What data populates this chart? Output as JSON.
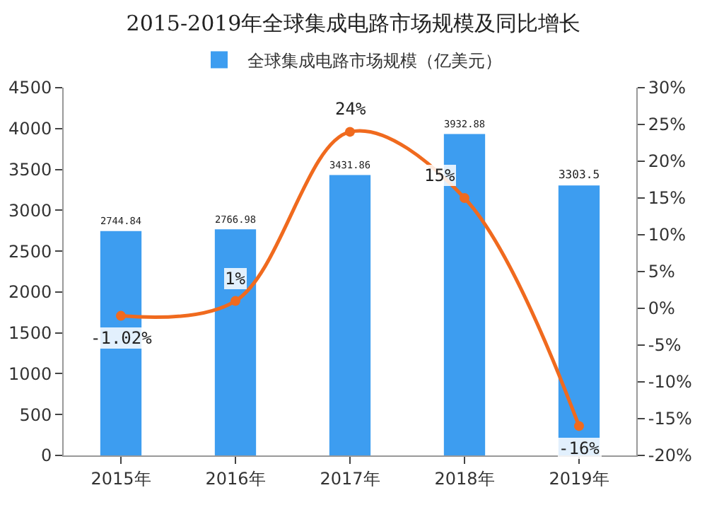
{
  "chart_data": {
    "type": "bar",
    "title": "2015-2019年全球集成电路市场规模及同比增长",
    "categories": [
      "2015年",
      "2016年",
      "2017年",
      "2018年",
      "2019年"
    ],
    "series": [
      {
        "name": "全球集成电路市场规模（亿美元）",
        "color": "#3d9df0",
        "values": [
          2744.84,
          2766.98,
          3431.86,
          3932.88,
          3303.5
        ],
        "value_labels": [
          "2744.84",
          "2766.98",
          "3431.86",
          "3932.88",
          "3303.5"
        ]
      },
      {
        "type": "line",
        "axis": "y2",
        "color": "#f06a1e",
        "values": [
          -1.02,
          1,
          24,
          15,
          -16
        ],
        "value_labels": [
          "-1.02%",
          "1%",
          "24%",
          "15%",
          "-16%"
        ],
        "marker": "circle"
      }
    ],
    "ylim": [
      0,
      4500
    ],
    "yticks": [
      0,
      500,
      1000,
      1500,
      2000,
      2500,
      3000,
      3500,
      4000,
      4500
    ],
    "y2lim": [
      -20,
      30
    ],
    "y2ticks": [
      {
        "value": -20,
        "label": "-20%"
      },
      {
        "value": -15,
        "label": "-15%"
      },
      {
        "value": -10,
        "label": "-10%"
      },
      {
        "value": -5,
        "label": "-5%"
      },
      {
        "value": 0,
        "label": "0%"
      },
      {
        "value": 5,
        "label": "5%"
      },
      {
        "value": 10,
        "label": "10%"
      },
      {
        "value": 15,
        "label": "15%"
      },
      {
        "value": 20,
        "label": "20%"
      },
      {
        "value": 25,
        "label": "25%"
      },
      {
        "value": 30,
        "label": "30%"
      }
    ],
    "grid": false,
    "legend": "top"
  }
}
